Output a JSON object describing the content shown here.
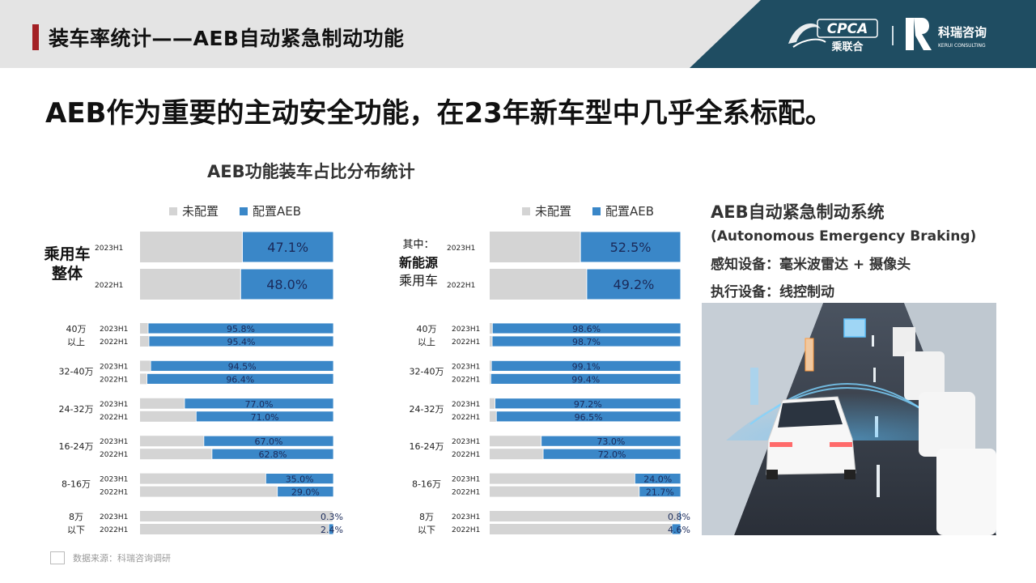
{
  "header": {
    "title": "装车率统计——AEB自动紧急制动功能",
    "logo_text": "CPCA",
    "logo_cn": "乘联合",
    "brand_cn": "科瑞咨询",
    "brand_en": "KERUI CONSULTING"
  },
  "headline": "AEB作为重要的主动安全功能，在23年新车型中几乎全系标配。",
  "chart_title": "AEB功能装车占比分布统计",
  "legend": {
    "not_equipped": "未配置",
    "equipped": "配置AEB"
  },
  "colors": {
    "equipped": "#3a87c8",
    "not_equipped": "#d4d4d4",
    "accent": "#a32024",
    "header_dark": "#1f4d62"
  },
  "chart_data": [
    {
      "type": "bar",
      "stacked": true,
      "orientation": "horizontal",
      "group_label": "乘用车整体",
      "big_label_lines": [
        "乘用车",
        "整体"
      ],
      "series_names": [
        "未配置",
        "配置AEB"
      ],
      "top": [
        {
          "period": "2023H1",
          "value": 47.1,
          "label": "47.1%"
        },
        {
          "period": "2022H1",
          "value": 48.0,
          "label": "48.0%"
        }
      ],
      "groups": [
        {
          "label_lines": [
            "40万",
            "以上"
          ],
          "rows": [
            {
              "period": "2023H1",
              "value": 95.8,
              "label": "95.8%"
            },
            {
              "period": "2022H1",
              "value": 95.4,
              "label": "95.4%"
            }
          ]
        },
        {
          "label_lines": [
            "32-40万"
          ],
          "rows": [
            {
              "period": "2023H1",
              "value": 94.5,
              "label": "94.5%"
            },
            {
              "period": "2022H1",
              "value": 96.4,
              "label": "96.4%"
            }
          ]
        },
        {
          "label_lines": [
            "24-32万"
          ],
          "rows": [
            {
              "period": "2023H1",
              "value": 77.0,
              "label": "77.0%"
            },
            {
              "period": "2022H1",
              "value": 71.0,
              "label": "71.0%"
            }
          ]
        },
        {
          "label_lines": [
            "16-24万"
          ],
          "rows": [
            {
              "period": "2023H1",
              "value": 67.0,
              "label": "67.0%"
            },
            {
              "period": "2022H1",
              "value": 62.8,
              "label": "62.8%"
            }
          ]
        },
        {
          "label_lines": [
            "8-16万"
          ],
          "rows": [
            {
              "period": "2023H1",
              "value": 35.0,
              "label": "35.0%"
            },
            {
              "period": "2022H1",
              "value": 29.0,
              "label": "29.0%"
            }
          ]
        },
        {
          "label_lines": [
            "8万",
            "以下"
          ],
          "rows": [
            {
              "period": "2023H1",
              "value": 0.3,
              "label": "0.3%"
            },
            {
              "period": "2022H1",
              "value": 2.4,
              "label": "2.4%"
            }
          ]
        }
      ]
    },
    {
      "type": "bar",
      "stacked": true,
      "orientation": "horizontal",
      "group_label": "其中：新能源乘用车",
      "big_label_lines": [
        "其中：",
        "新能源",
        "乘用车"
      ],
      "series_names": [
        "未配置",
        "配置AEB"
      ],
      "top": [
        {
          "period": "2023H1",
          "value": 52.5,
          "label": "52.5%"
        },
        {
          "period": "2022H1",
          "value": 49.2,
          "label": "49.2%"
        }
      ],
      "groups": [
        {
          "label_lines": [
            "40万",
            "以上"
          ],
          "rows": [
            {
              "period": "2023H1",
              "value": 98.6,
              "label": "98.6%"
            },
            {
              "period": "2022H1",
              "value": 98.7,
              "label": "98.7%"
            }
          ]
        },
        {
          "label_lines": [
            "32-40万"
          ],
          "rows": [
            {
              "period": "2023H1",
              "value": 99.1,
              "label": "99.1%"
            },
            {
              "period": "2022H1",
              "value": 99.4,
              "label": "99.4%"
            }
          ]
        },
        {
          "label_lines": [
            "24-32万"
          ],
          "rows": [
            {
              "period": "2023H1",
              "value": 97.2,
              "label": "97.2%"
            },
            {
              "period": "2022H1",
              "value": 96.5,
              "label": "96.5%"
            }
          ]
        },
        {
          "label_lines": [
            "16-24万"
          ],
          "rows": [
            {
              "period": "2023H1",
              "value": 73.0,
              "label": "73.0%"
            },
            {
              "period": "2022H1",
              "value": 72.0,
              "label": "72.0%"
            }
          ]
        },
        {
          "label_lines": [
            "8-16万"
          ],
          "rows": [
            {
              "period": "2023H1",
              "value": 24.0,
              "label": "24.0%"
            },
            {
              "period": "2022H1",
              "value": 21.7,
              "label": "21.7%"
            }
          ]
        },
        {
          "label_lines": [
            "8万",
            "以下"
          ],
          "rows": [
            {
              "period": "2023H1",
              "value": 0.8,
              "label": "0.8%"
            },
            {
              "period": "2022H1",
              "value": 4.6,
              "label": "4.6%"
            }
          ]
        }
      ]
    }
  ],
  "right_panel": {
    "title": "AEB自动紧急制动系统",
    "subtitle": "(Autonomous Emergency Braking)",
    "sensing": "感知设备：毫米波雷达 + 摄像头",
    "actuation": "执行设备：线控制动"
  },
  "source": "数据来源：科瑞咨询调研"
}
